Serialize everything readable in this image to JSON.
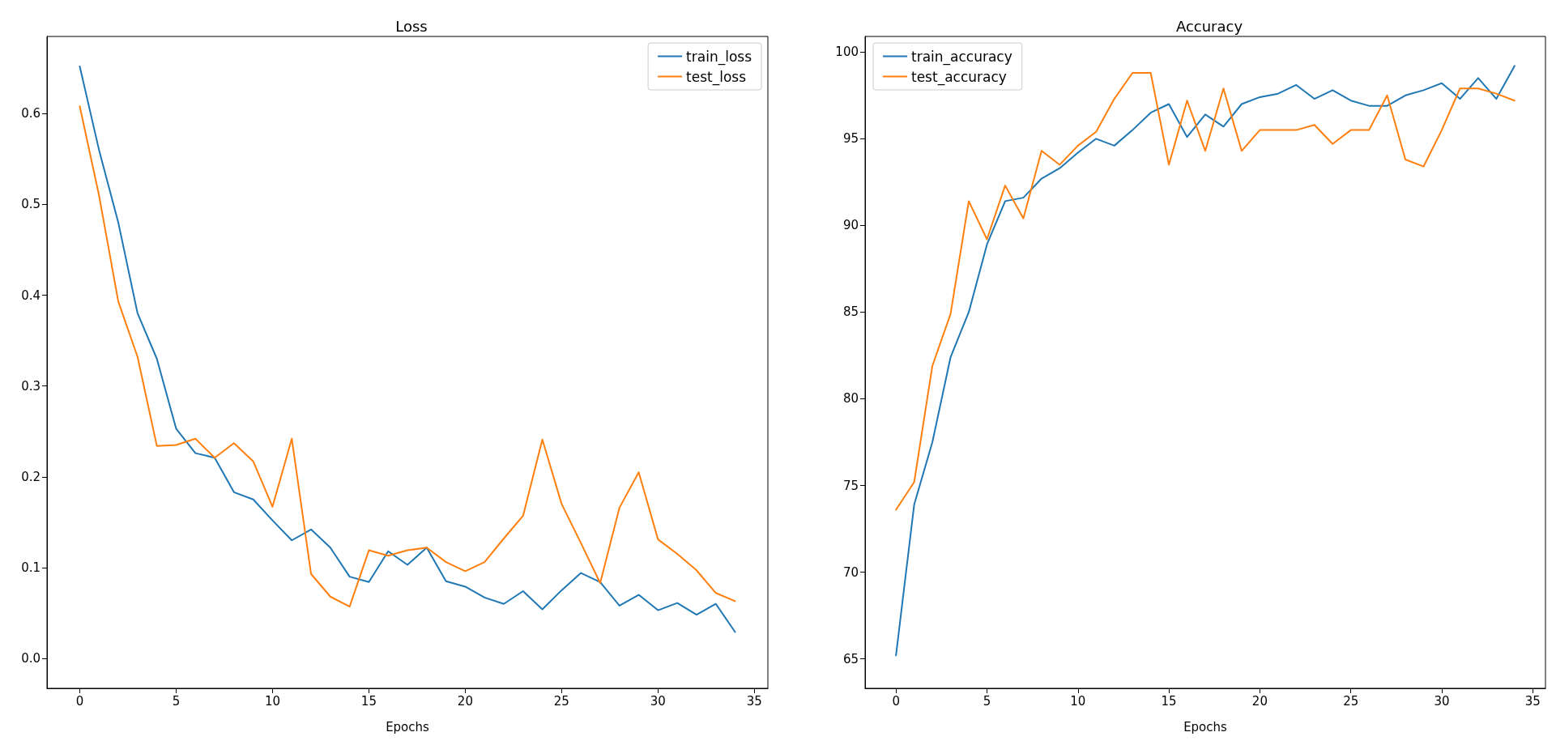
{
  "chart_data": [
    {
      "type": "line",
      "title": "Loss",
      "xlabel": "Epochs",
      "x": [
        0,
        1,
        2,
        3,
        4,
        5,
        6,
        7,
        8,
        9,
        10,
        11,
        12,
        13,
        14,
        15,
        16,
        17,
        18,
        19,
        20,
        21,
        22,
        23,
        24,
        25,
        26,
        27,
        28,
        29,
        30,
        31,
        32,
        33,
        34
      ],
      "series": [
        {
          "name": "train_loss",
          "color": "#1f77b4",
          "values": [
            0.652,
            0.56,
            0.48,
            0.38,
            0.33,
            0.253,
            0.226,
            0.221,
            0.183,
            0.175,
            0.152,
            0.13,
            0.142,
            0.122,
            0.09,
            0.084,
            0.118,
            0.103,
            0.122,
            0.085,
            0.079,
            0.067,
            0.06,
            0.074,
            0.054,
            0.075,
            0.094,
            0.084,
            0.058,
            0.07,
            0.053,
            0.061,
            0.048,
            0.06,
            0.029
          ]
        },
        {
          "name": "test_loss",
          "color": "#ff7f0e",
          "values": [
            0.608,
            0.51,
            0.393,
            0.332,
            0.234,
            0.235,
            0.242,
            0.221,
            0.237,
            0.217,
            0.167,
            0.242,
            0.093,
            0.068,
            0.057,
            0.119,
            0.113,
            0.119,
            0.122,
            0.106,
            0.096,
            0.106,
            0.132,
            0.157,
            0.241,
            0.17,
            0.127,
            0.083,
            0.166,
            0.205,
            0.131,
            0.115,
            0.097,
            0.072,
            0.063
          ]
        }
      ],
      "xlim": [
        -1.7,
        35.7
      ],
      "xticks": [
        0,
        5,
        10,
        15,
        20,
        25,
        30,
        35
      ],
      "ylim": [
        -0.033,
        0.685
      ],
      "yticks": [
        {
          "value": 0,
          "label": "0.0"
        },
        0.1,
        0.2,
        0.3,
        0.4,
        0.5,
        0.6
      ],
      "grid": false,
      "legend": "top right",
      "marker": "none",
      "line_style": "solid"
    },
    {
      "type": "line",
      "title": "Accuracy",
      "xlabel": "Epochs",
      "x": [
        0,
        1,
        2,
        3,
        4,
        5,
        6,
        7,
        8,
        9,
        10,
        11,
        12,
        13,
        14,
        15,
        16,
        17,
        18,
        19,
        20,
        21,
        22,
        23,
        24,
        25,
        26,
        27,
        28,
        29,
        30,
        31,
        32,
        33,
        34
      ],
      "series": [
        {
          "name": "train_accuracy",
          "color": "#1f77b4",
          "values": [
            65.2,
            73.9,
            77.5,
            82.4,
            85,
            88.9,
            91.4,
            91.6,
            92.7,
            93.3,
            94.2,
            95,
            94.6,
            95.5,
            96.5,
            97,
            95.1,
            96.4,
            95.7,
            97,
            97.4,
            97.6,
            98.1,
            97.3,
            97.8,
            97.2,
            96.9,
            96.9,
            97.5,
            97.8,
            98.2,
            97.3,
            98.5,
            97.3,
            99.2
          ]
        },
        {
          "name": "test_accuracy",
          "color": "#ff7f0e",
          "values": [
            73.6,
            75.2,
            81.9,
            84.9,
            91.4,
            89.2,
            92.3,
            90.4,
            94.3,
            93.5,
            94.6,
            95.4,
            97.3,
            98.8,
            98.8,
            93.5,
            97.2,
            94.3,
            97.9,
            94.3,
            95.5,
            95.5,
            95.5,
            95.8,
            94.7,
            95.5,
            95.5,
            97.5,
            93.8,
            93.4,
            95.5,
            97.9,
            97.9,
            97.6,
            97.2
          ]
        }
      ],
      "xlim": [
        -1.7,
        35.7
      ],
      "xticks": [
        0,
        5,
        10,
        15,
        20,
        25,
        30,
        35
      ],
      "ylim": [
        63.3,
        100.9
      ],
      "yticks": [
        65,
        70,
        75,
        80,
        85,
        90,
        95,
        100
      ],
      "grid": false,
      "legend": "top left",
      "marker": "none",
      "line_style": "solid"
    }
  ]
}
